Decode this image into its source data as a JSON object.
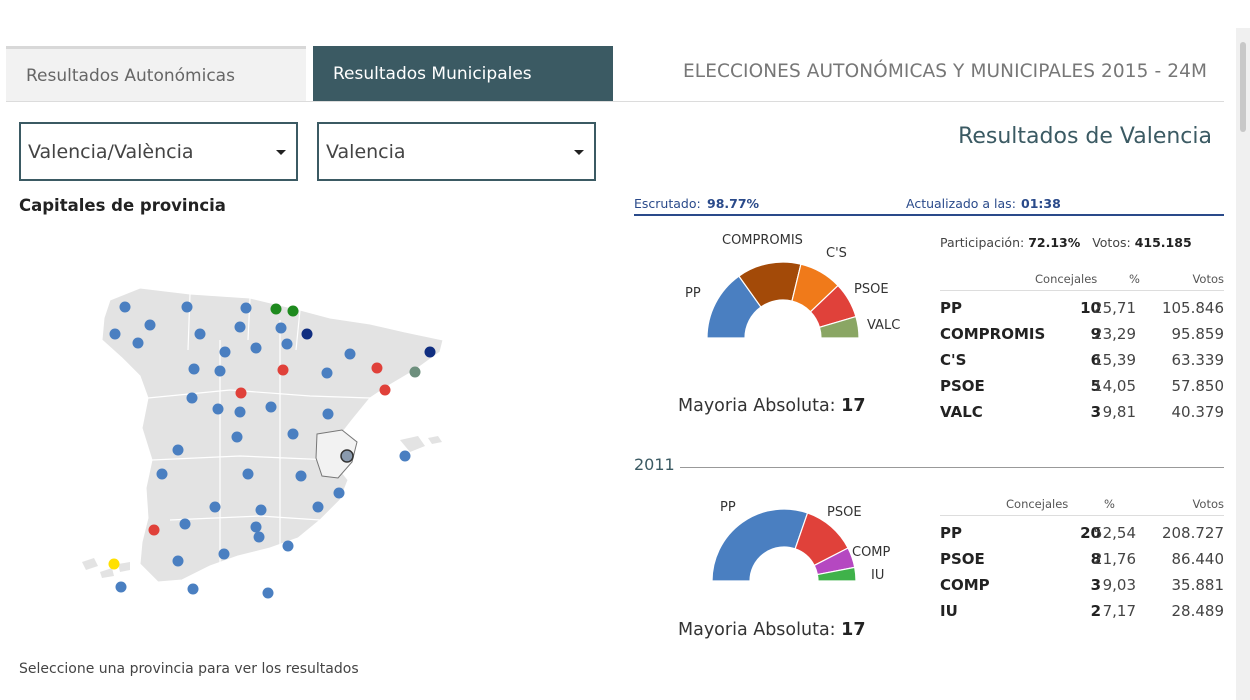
{
  "tabs": {
    "autonomicas": "Resultados Autonómicas",
    "municipales": "Resultados Municipales"
  },
  "header_title": "ELECCIONES AUTONÓMICAS Y MUNICIPALES 2015 - 24M",
  "selects": {
    "community": "Valencia/València",
    "province": "Valencia"
  },
  "capitales_title": "Capitales de provincia",
  "select_hint": "Seleccione una provincia para ver los resultados",
  "results_title": "Resultados de Valencia",
  "escrutado_label": "Escrutado:",
  "escrutado_value": "98.77%",
  "actualizado_label": "Actualizado a las:",
  "actualizado_value": "01:38",
  "participacion_label": "Participación:",
  "participacion_value": "72.13%",
  "votos_label": "Votos:",
  "votos_value": "415.185",
  "table_headers": {
    "concejales": "Concejales",
    "pct": "%",
    "votos": "Votos"
  },
  "mayoria_label": "Mayoria Absoluta:",
  "mayoria_value": "17",
  "y2011": "2011",
  "results2015": [
    {
      "party": "PP",
      "concejales": "10",
      "pct": "25,71",
      "votos": "105.846",
      "color": "#4a7fc1"
    },
    {
      "party": "COMPROMIS",
      "concejales": "9",
      "pct": "23,29",
      "votos": "95.859",
      "color": "#a34a08"
    },
    {
      "party": "C'S",
      "concejales": "6",
      "pct": "15,39",
      "votos": "63.339",
      "color": "#f07a1a"
    },
    {
      "party": "PSOE",
      "concejales": "5",
      "pct": "14,05",
      "votos": "57.850",
      "color": "#e0413a"
    },
    {
      "party": "VALC",
      "concejales": "3",
      "pct": "9,81",
      "votos": "40.379",
      "color": "#8aa664"
    }
  ],
  "results2011": [
    {
      "party": "PP",
      "concejales": "20",
      "pct": "52,54",
      "votos": "208.727",
      "color": "#4a7fc1"
    },
    {
      "party": "PSOE",
      "concejales": "8",
      "pct": "21,76",
      "votos": "86.440",
      "color": "#e0413a"
    },
    {
      "party": "COMP",
      "concejales": "3",
      "pct": "9,03",
      "votos": "35.881",
      "color": "#b548c1"
    },
    {
      "party": "IU",
      "concejales": "2",
      "pct": "7,17",
      "votos": "28.489",
      "color": "#3fb24a"
    }
  ],
  "pie_labels_2015": {
    "pp": "PP",
    "compromis": "COMPROMIS",
    "cs": "C'S",
    "psoe": "PSOE",
    "valc": "VALC"
  },
  "pie_labels_2011": {
    "pp": "PP",
    "psoe": "PSOE",
    "comp": "COMP",
    "iu": "IU"
  },
  "colors": {
    "accent": "#3b5a63",
    "marker_blue": "#4a7fc1",
    "map_fill": "#e3e3e3",
    "scrutiny": "#2a4a8a"
  }
}
